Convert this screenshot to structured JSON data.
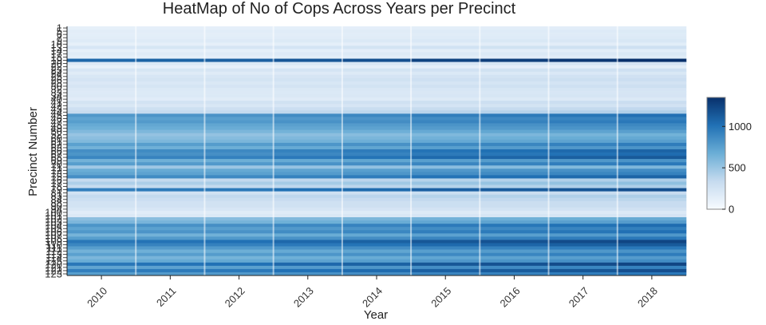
{
  "chart_data": {
    "type": "heatmap",
    "title": "HeatMap of No of Cops Across Years per Precinct",
    "xlabel": "Year",
    "ylabel": "Precinct Number",
    "x": [
      "2010",
      "2011",
      "2012",
      "2013",
      "2014",
      "2015",
      "2016",
      "2017",
      "2018"
    ],
    "y_tick_labels": [
      "1",
      "5",
      "6",
      "7",
      "9",
      "10",
      "13",
      "14",
      "17",
      "18",
      "19",
      "20",
      "22",
      "23",
      "24",
      "25",
      "26",
      "28",
      "30",
      "32",
      "33",
      "34",
      "40",
      "41",
      "42",
      "43",
      "44",
      "45",
      "46",
      "47",
      "48",
      "49",
      "50",
      "52",
      "60",
      "61",
      "62",
      "63",
      "66",
      "67",
      "68",
      "69",
      "70",
      "71",
      "72",
      "73",
      "75",
      "76",
      "77",
      "78",
      "79",
      "81",
      "83",
      "84",
      "88",
      "90",
      "94",
      "100",
      "101",
      "102",
      "103",
      "104",
      "105",
      "106",
      "107",
      "108",
      "109",
      "110",
      "111",
      "112",
      "113",
      "114",
      "115",
      "120",
      "121",
      "122",
      "123"
    ],
    "colorbar": {
      "min": 0,
      "max": 1350,
      "ticks": [
        0,
        500,
        1000
      ],
      "low_color": "#f7fbff",
      "high_color": "#08306b"
    },
    "row_base": [
      140,
      170,
      160,
      170,
      200,
      140,
      260,
      140,
      190,
      150,
      1250,
      220,
      130,
      260,
      190,
      250,
      280,
      230,
      270,
      220,
      210,
      220,
      180,
      290,
      240,
      330,
      390,
      940,
      860,
      900,
      820,
      780,
      700,
      600,
      650,
      700,
      880,
      760,
      1000,
      960,
      1050,
      760,
      900,
      560,
      800,
      850,
      1000,
      400,
      500,
      400,
      1100,
      300,
      400,
      350,
      300,
      300,
      250,
      180,
      220,
      650,
      720,
      960,
      860,
      940,
      740,
      900,
      1150,
      1050,
      900,
      760,
      880,
      720,
      800,
      1150,
      850,
      1100,
      900
    ],
    "year_factors": [
      0.85,
      0.87,
      0.88,
      0.92,
      0.95,
      1.0,
      1.02,
      1.05,
      1.08
    ]
  }
}
